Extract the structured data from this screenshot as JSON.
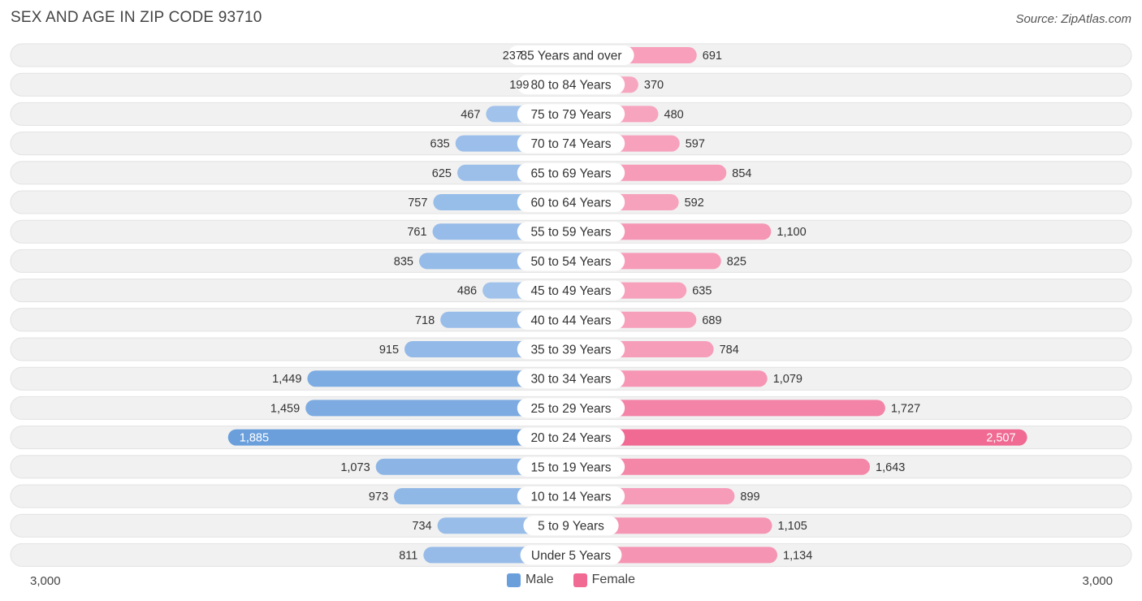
{
  "title": "SEX AND AGE IN ZIP CODE 93710",
  "source": "Source: ZipAtlas.com",
  "colors": {
    "male": "#6a9fdc",
    "male_light": "#a9c8ee",
    "female": "#f06a93",
    "female_light": "#f8aac3",
    "row_bg": "#f1f1f1"
  },
  "legend": {
    "male": "Male",
    "female": "Female"
  },
  "axis": {
    "left_label": "3,000",
    "right_label": "3,000"
  },
  "chart_data": {
    "type": "bar",
    "orientation": "horizontal-diverging",
    "categories": [
      "85 Years and over",
      "80 to 84 Years",
      "75 to 79 Years",
      "70 to 74 Years",
      "65 to 69 Years",
      "60 to 64 Years",
      "55 to 59 Years",
      "50 to 54 Years",
      "45 to 49 Years",
      "40 to 44 Years",
      "35 to 39 Years",
      "30 to 34 Years",
      "25 to 29 Years",
      "20 to 24 Years",
      "15 to 19 Years",
      "10 to 14 Years",
      "5 to 9 Years",
      "Under 5 Years"
    ],
    "series": [
      {
        "name": "Male",
        "values": [
          237,
          199,
          467,
          635,
          625,
          757,
          761,
          835,
          486,
          718,
          915,
          1449,
          1459,
          1885,
          1073,
          973,
          734,
          811
        ],
        "labels": [
          "237",
          "199",
          "467",
          "635",
          "625",
          "757",
          "761",
          "835",
          "486",
          "718",
          "915",
          "1,449",
          "1,459",
          "1,885",
          "1,073",
          "973",
          "734",
          "811"
        ]
      },
      {
        "name": "Female",
        "values": [
          691,
          370,
          480,
          597,
          854,
          592,
          1100,
          825,
          635,
          689,
          784,
          1079,
          1727,
          2507,
          1643,
          899,
          1105,
          1134
        ],
        "labels": [
          "691",
          "370",
          "480",
          "597",
          "854",
          "592",
          "1,100",
          "825",
          "635",
          "689",
          "784",
          "1,079",
          "1,727",
          "2,507",
          "1,643",
          "899",
          "1,105",
          "1,134"
        ]
      }
    ],
    "xlim": [
      -3000,
      3000
    ],
    "legend_position": "bottom-center"
  }
}
